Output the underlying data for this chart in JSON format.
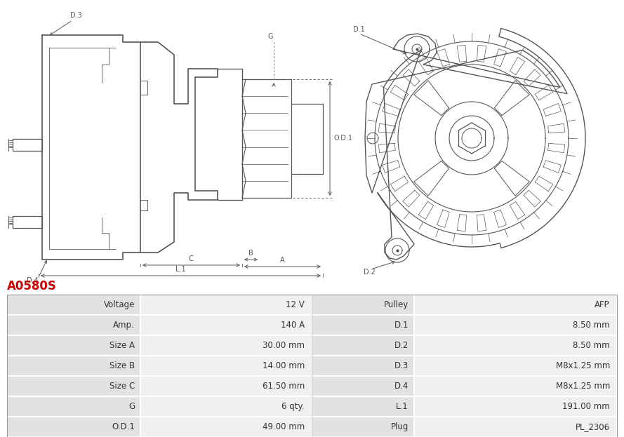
{
  "title": "A0580S",
  "title_color": "#cc0000",
  "bg_color": "#ffffff",
  "table_row_bg1": "#e2e2e2",
  "table_row_bg2": "#f0f0f0",
  "table_border_color": "#ffffff",
  "rows": [
    [
      "Voltage",
      "12 V",
      "Pulley",
      "AFP"
    ],
    [
      "Amp.",
      "140 A",
      "D.1",
      "8.50 mm"
    ],
    [
      "Size A",
      "30.00 mm",
      "D.2",
      "8.50 mm"
    ],
    [
      "Size B",
      "14.00 mm",
      "D.3",
      "M8x1.25 mm"
    ],
    [
      "Size C",
      "61.50 mm",
      "D.4",
      "M8x1.25 mm"
    ],
    [
      "G",
      "6 qty.",
      "L.1",
      "191.00 mm"
    ],
    [
      "O.D.1",
      "49.00 mm",
      "Plug",
      "PL_2306"
    ]
  ],
  "font_size_title": 12,
  "font_size_table": 8.5,
  "line_color": "#555555",
  "dim_color": "#555555",
  "label_fontsize": 7
}
